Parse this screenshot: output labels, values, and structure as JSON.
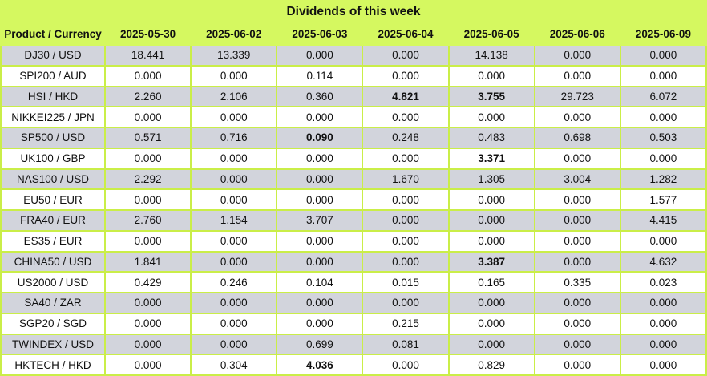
{
  "title": "Dividends of this week",
  "colors": {
    "header_bg": "#d5f860",
    "grid": "#caee48",
    "row_gray": "#d2d4dc",
    "row_white": "#ffffff",
    "text": "#111111"
  },
  "chart_data": {
    "type": "table",
    "title": "Dividends of this week",
    "row_header_label": "Product / Currency",
    "columns": [
      "2025-05-30",
      "2025-06-02",
      "2025-06-03",
      "2025-06-04",
      "2025-06-05",
      "2025-06-06",
      "2025-06-09"
    ],
    "rows": [
      {
        "product": "DJ30 / USD",
        "values": [
          "18.441",
          "13.339",
          "0.000",
          "0.000",
          "14.138",
          "0.000",
          "0.000"
        ],
        "bold_indices": []
      },
      {
        "product": "SPI200 / AUD",
        "values": [
          "0.000",
          "0.000",
          "0.114",
          "0.000",
          "0.000",
          "0.000",
          "0.000"
        ],
        "bold_indices": []
      },
      {
        "product": "HSI / HKD",
        "values": [
          "2.260",
          "2.106",
          "0.360",
          "4.821",
          "3.755",
          "29.723",
          "6.072"
        ],
        "bold_indices": [
          3,
          4
        ]
      },
      {
        "product": "NIKKEI225 / JPN",
        "values": [
          "0.000",
          "0.000",
          "0.000",
          "0.000",
          "0.000",
          "0.000",
          "0.000"
        ],
        "bold_indices": []
      },
      {
        "product": "SP500 / USD",
        "values": [
          "0.571",
          "0.716",
          "0.090",
          "0.248",
          "0.483",
          "0.698",
          "0.503"
        ],
        "bold_indices": [
          2
        ]
      },
      {
        "product": "UK100 / GBP",
        "values": [
          "0.000",
          "0.000",
          "0.000",
          "0.000",
          "3.371",
          "0.000",
          "0.000"
        ],
        "bold_indices": [
          4
        ]
      },
      {
        "product": "NAS100 / USD",
        "values": [
          "2.292",
          "0.000",
          "0.000",
          "1.670",
          "1.305",
          "3.004",
          "1.282"
        ],
        "bold_indices": []
      },
      {
        "product": "EU50 / EUR",
        "values": [
          "0.000",
          "0.000",
          "0.000",
          "0.000",
          "0.000",
          "0.000",
          "1.577"
        ],
        "bold_indices": []
      },
      {
        "product": "FRA40 / EUR",
        "values": [
          "2.760",
          "1.154",
          "3.707",
          "0.000",
          "0.000",
          "0.000",
          "4.415"
        ],
        "bold_indices": []
      },
      {
        "product": "ES35 / EUR",
        "values": [
          "0.000",
          "0.000",
          "0.000",
          "0.000",
          "0.000",
          "0.000",
          "0.000"
        ],
        "bold_indices": []
      },
      {
        "product": "CHINA50 / USD",
        "values": [
          "1.841",
          "0.000",
          "0.000",
          "0.000",
          "3.387",
          "0.000",
          "4.632"
        ],
        "bold_indices": [
          4
        ]
      },
      {
        "product": "US2000 / USD",
        "values": [
          "0.429",
          "0.246",
          "0.104",
          "0.015",
          "0.165",
          "0.335",
          "0.023"
        ],
        "bold_indices": []
      },
      {
        "product": "SA40 / ZAR",
        "values": [
          "0.000",
          "0.000",
          "0.000",
          "0.000",
          "0.000",
          "0.000",
          "0.000"
        ],
        "bold_indices": []
      },
      {
        "product": "SGP20 / SGD",
        "values": [
          "0.000",
          "0.000",
          "0.000",
          "0.215",
          "0.000",
          "0.000",
          "0.000"
        ],
        "bold_indices": []
      },
      {
        "product": "TWINDEX / USD",
        "values": [
          "0.000",
          "0.000",
          "0.699",
          "0.081",
          "0.000",
          "0.000",
          "0.000"
        ],
        "bold_indices": []
      },
      {
        "product": "HKTECH / HKD",
        "values": [
          "0.000",
          "0.304",
          "4.036",
          "0.000",
          "0.829",
          "0.000",
          "0.000"
        ],
        "bold_indices": [
          2
        ]
      }
    ]
  }
}
